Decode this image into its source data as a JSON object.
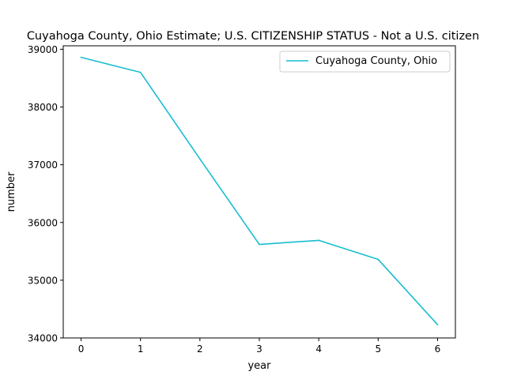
{
  "chart_data": {
    "type": "line",
    "title": "Cuyahoga County, Ohio Estimate; U.S. CITIZENSHIP STATUS - Not a U.S. citizen",
    "xlabel": "year",
    "ylabel": "number",
    "x": [
      0,
      1,
      2,
      3,
      4,
      5,
      6
    ],
    "xticks": [
      "0",
      "1",
      "2",
      "3",
      "4",
      "5",
      "6"
    ],
    "yticks": [
      "34000",
      "35000",
      "36000",
      "37000",
      "38000",
      "39000"
    ],
    "xlim": [
      -0.3,
      6.3
    ],
    "ylim": [
      34000,
      39060
    ],
    "grid": false,
    "legend_position": "top-right",
    "series": [
      {
        "name": "Cuyahoga County, Ohio",
        "color": "#17becf",
        "values": [
          38860,
          38600,
          37100,
          35620,
          35690,
          35360,
          34230
        ]
      }
    ]
  }
}
